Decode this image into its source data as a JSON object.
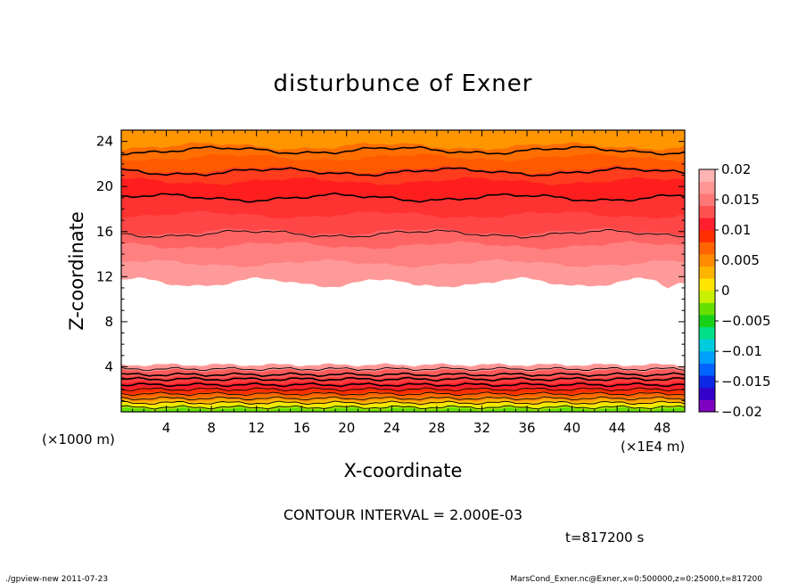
{
  "chart_data": {
    "type": "heatmap",
    "title": "disturbunce of Exner",
    "xlabel": "X-coordinate",
    "ylabel": "Z-coordinate",
    "x_unit": "(×1E4 m)",
    "y_unit": "(×1000 m)",
    "xlim": [
      0,
      50
    ],
    "ylim": [
      0,
      25
    ],
    "x_ticks": [
      "4",
      "8",
      "12",
      "16",
      "20",
      "24",
      "28",
      "32",
      "36",
      "40",
      "44",
      "48"
    ],
    "y_ticks": [
      "4",
      "8",
      "12",
      "16",
      "20",
      "24"
    ],
    "colorbar": {
      "range": [
        -0.02,
        0.02
      ],
      "labels": [
        "0.02",
        "0.015",
        "0.01",
        "0.005",
        "0",
        "−0.005",
        "−0.01",
        "−0.015",
        "−0.02"
      ],
      "colors": [
        "#7f00bf",
        "#3300cc",
        "#0a28e6",
        "#0064ff",
        "#00a0ff",
        "#00ccdd",
        "#00e08a",
        "#17d117",
        "#66e000",
        "#c8f000",
        "#ffe600",
        "#ffb400",
        "#ff8c00",
        "#ff6400",
        "#ff2d00",
        "#ff1e2d",
        "#ff5050",
        "#ff7878",
        "#ff9696",
        "#ffb4b4"
      ]
    },
    "bands": [
      {
        "from": 0.0,
        "to": 0.3,
        "color": "#66e000"
      },
      {
        "from": 0.3,
        "to": 0.55,
        "color": "#c8f000"
      },
      {
        "from": 0.55,
        "to": 0.8,
        "color": "#ffe600"
      },
      {
        "from": 0.8,
        "to": 1.05,
        "color": "#ffb400"
      },
      {
        "from": 1.05,
        "to": 1.35,
        "color": "#ff8c00"
      },
      {
        "from": 1.35,
        "to": 1.7,
        "color": "#ff6400"
      },
      {
        "from": 1.7,
        "to": 2.1,
        "color": "#ff2d00"
      },
      {
        "from": 2.1,
        "to": 2.6,
        "color": "#ff1e2d"
      },
      {
        "from": 2.6,
        "to": 3.1,
        "color": "#ff3c3c"
      },
      {
        "from": 3.1,
        "to": 3.7,
        "color": "#ff5a5a"
      },
      {
        "from": 3.7,
        "to": 4.2,
        "color": "#ff9696"
      },
      {
        "from": 4.2,
        "to": 11.5,
        "color": "#ffffff"
      },
      {
        "from": 11.5,
        "to": 13.2,
        "color": "#ff9a9a"
      },
      {
        "from": 13.2,
        "to": 14.8,
        "color": "#ff8080"
      },
      {
        "from": 14.8,
        "to": 16.0,
        "color": "#ff6464"
      },
      {
        "from": 16.0,
        "to": 17.5,
        "color": "#ff4646"
      },
      {
        "from": 17.5,
        "to": 19.0,
        "color": "#ff3232"
      },
      {
        "from": 19.0,
        "to": 20.5,
        "color": "#ff1e1e"
      },
      {
        "from": 20.5,
        "to": 21.5,
        "color": "#ff3c1e"
      },
      {
        "from": 21.5,
        "to": 22.6,
        "color": "#ff5a00"
      },
      {
        "from": 22.6,
        "to": 23.6,
        "color": "#ff6e00"
      },
      {
        "from": 23.6,
        "to": 25.0,
        "color": "#ff9600"
      }
    ],
    "contour_levels_z": [
      0.4,
      0.8,
      1.2,
      1.6,
      2.0,
      2.4,
      2.9,
      3.3,
      3.8,
      15.8,
      19.0,
      21.3,
      23.2
    ],
    "grid": false,
    "legend": "right colorbar"
  },
  "annotations": {
    "contour_interval": "CONTOUR INTERVAL = 2.000E-03",
    "time": "t=817200  s",
    "footer_left": "./gpview-new   2011-07-23",
    "footer_right": "MarsCond_Exner.nc@Exner,x=0:500000,z=0:25000,t=817200"
  }
}
